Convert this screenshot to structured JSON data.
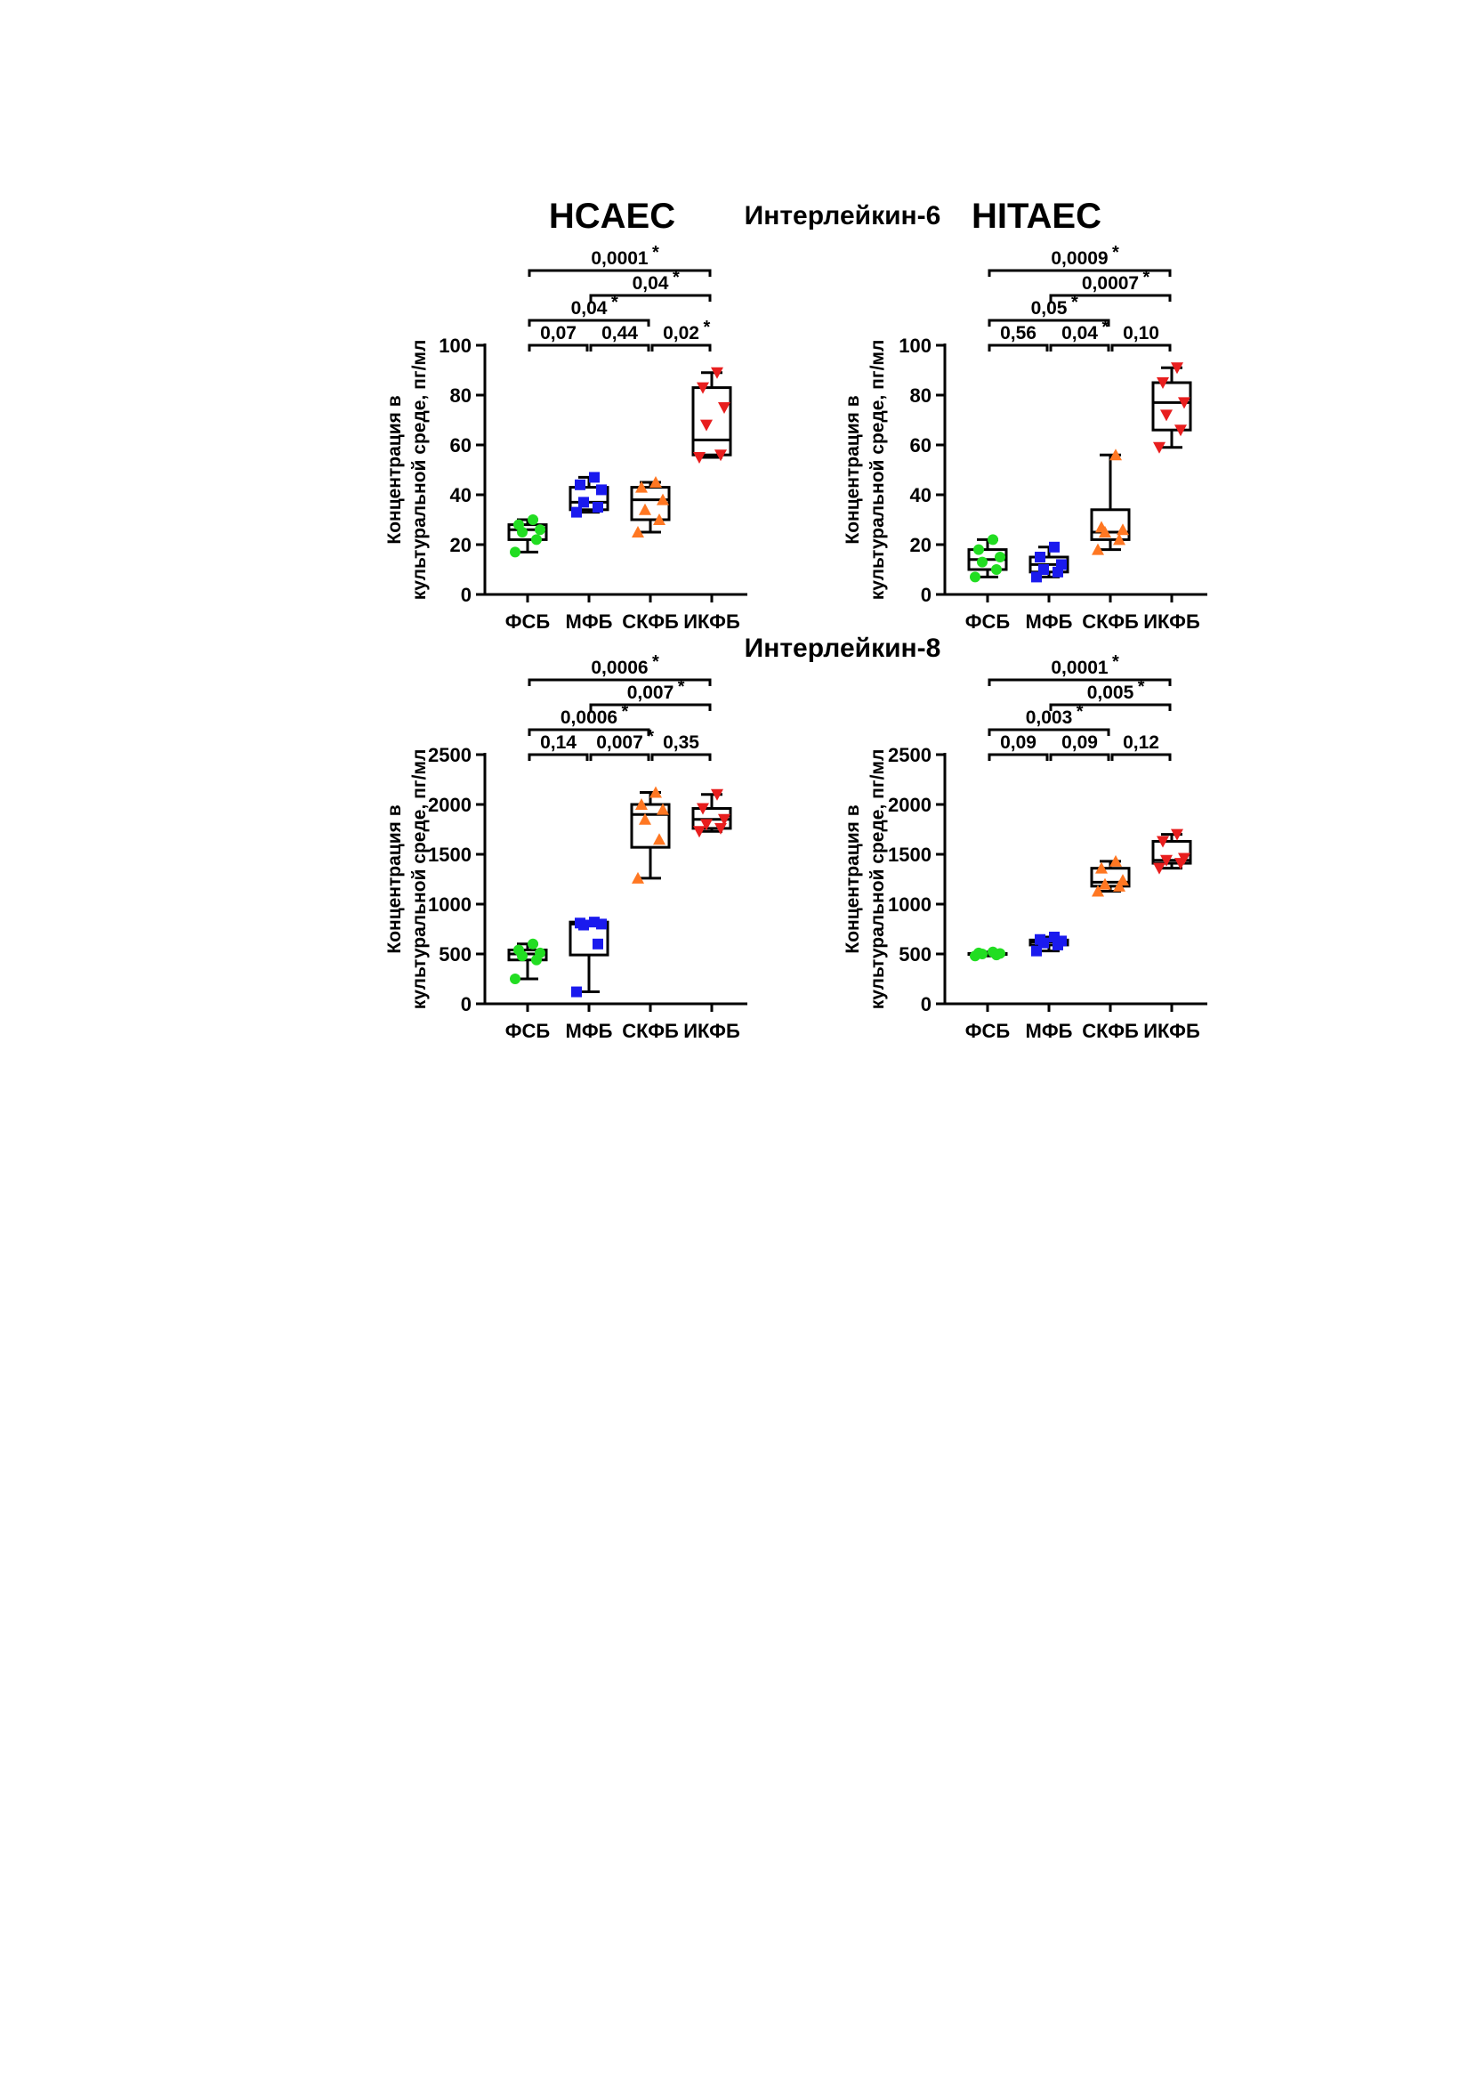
{
  "figure": {
    "cell_left_title": "HCAEC",
    "cell_right_title": "HITAEC",
    "il6_title": "Интерлейкин-6",
    "il8_title": "Интерлейкин-8"
  },
  "chart_data": [
    {
      "type": "box",
      "panel": "IL-6 HCAEC",
      "ylabel": [
        "Концентрация в",
        "культуральной среде, пг/мл"
      ],
      "ylim": [
        0,
        100
      ],
      "yticks": [
        0,
        20,
        40,
        60,
        80,
        100
      ],
      "categories": [
        "ФСБ",
        "МФБ",
        "СКФБ",
        "ИКФБ"
      ],
      "boxes": [
        {
          "category": "ФСБ",
          "min": 17,
          "q1": 22,
          "median": 26,
          "q3": 28,
          "max": 30,
          "color": "#22dd22",
          "marker": "circle",
          "points": [
            17,
            22,
            25,
            26,
            28,
            30
          ]
        },
        {
          "category": "МФБ",
          "min": 33,
          "q1": 34,
          "median": 37,
          "q3": 43,
          "max": 47,
          "color": "#1a1aee",
          "marker": "square",
          "points": [
            33,
            35,
            37,
            42,
            44,
            47
          ]
        },
        {
          "category": "СКФБ",
          "min": 25,
          "q1": 30,
          "median": 38,
          "q3": 43,
          "max": 45,
          "color": "#ff7722",
          "marker": "triangle-up",
          "points": [
            25,
            30,
            34,
            38,
            43,
            45
          ]
        },
        {
          "category": "ИКФБ",
          "min": 55,
          "q1": 56,
          "median": 62,
          "q3": 83,
          "max": 89,
          "color": "#e81e1e",
          "marker": "triangle-down",
          "points": [
            55,
            56,
            68,
            75,
            83,
            89
          ]
        }
      ],
      "comparisons": [
        {
          "from": 0,
          "to": 1,
          "level": 0,
          "label": "0,07",
          "significant": false
        },
        {
          "from": 1,
          "to": 2,
          "level": 0,
          "label": "0,44",
          "significant": false
        },
        {
          "from": 2,
          "to": 3,
          "level": 0,
          "label": "0,02",
          "significant": true
        },
        {
          "from": 0,
          "to": 2,
          "level": 1,
          "label": "0,04",
          "significant": true
        },
        {
          "from": 1,
          "to": 3,
          "level": 2,
          "label": "0,04",
          "significant": true
        },
        {
          "from": 0,
          "to": 3,
          "level": 3,
          "label": "0,0001",
          "significant": true
        }
      ]
    },
    {
      "type": "box",
      "panel": "IL-6 HITAEC",
      "ylabel": [
        "Концентрация в",
        "культуральной среде, пг/мл"
      ],
      "ylim": [
        0,
        100
      ],
      "yticks": [
        0,
        20,
        40,
        60,
        80,
        100
      ],
      "categories": [
        "ФСБ",
        "МФБ",
        "СКФБ",
        "ИКФБ"
      ],
      "boxes": [
        {
          "category": "ФСБ",
          "min": 7,
          "q1": 10,
          "median": 14,
          "q3": 18,
          "max": 22,
          "color": "#22dd22",
          "marker": "circle",
          "points": [
            7,
            10,
            13,
            15,
            18,
            22
          ]
        },
        {
          "category": "МФБ",
          "min": 7,
          "q1": 9,
          "median": 12,
          "q3": 15,
          "max": 19,
          "color": "#1a1aee",
          "marker": "square",
          "points": [
            7,
            9,
            10,
            12,
            15,
            19
          ]
        },
        {
          "category": "СКФБ",
          "min": 18,
          "q1": 22,
          "median": 25,
          "q3": 34,
          "max": 56,
          "color": "#ff7722",
          "marker": "triangle-up",
          "points": [
            18,
            22,
            25,
            26,
            27,
            56
          ]
        },
        {
          "category": "ИКФБ",
          "min": 59,
          "q1": 66,
          "median": 77,
          "q3": 85,
          "max": 91,
          "color": "#e81e1e",
          "marker": "triangle-down",
          "points": [
            59,
            66,
            72,
            77,
            85,
            91
          ]
        }
      ],
      "comparisons": [
        {
          "from": 0,
          "to": 1,
          "level": 0,
          "label": "0,56",
          "significant": false
        },
        {
          "from": 1,
          "to": 2,
          "level": 0,
          "label": "0,04",
          "significant": true
        },
        {
          "from": 2,
          "to": 3,
          "level": 0,
          "label": "0,10",
          "significant": false
        },
        {
          "from": 0,
          "to": 2,
          "level": 1,
          "label": "0,05",
          "significant": true
        },
        {
          "from": 1,
          "to": 3,
          "level": 2,
          "label": "0,0007",
          "significant": true
        },
        {
          "from": 0,
          "to": 3,
          "level": 3,
          "label": "0,0009",
          "significant": true
        }
      ]
    },
    {
      "type": "box",
      "panel": "IL-8 HCAEC",
      "ylabel": [
        "Концентрация в",
        "культуральной среде, пг/мл"
      ],
      "ylim": [
        0,
        2500
      ],
      "yticks": [
        0,
        500,
        1000,
        1500,
        2000,
        2500
      ],
      "categories": [
        "ФСБ",
        "МФБ",
        "СКФБ",
        "ИКФБ"
      ],
      "boxes": [
        {
          "category": "ФСБ",
          "min": 250,
          "q1": 440,
          "median": 500,
          "q3": 540,
          "max": 600,
          "color": "#22dd22",
          "marker": "circle",
          "points": [
            250,
            440,
            480,
            510,
            540,
            600
          ]
        },
        {
          "category": "МФБ",
          "min": 120,
          "q1": 490,
          "median": 800,
          "q3": 820,
          "max": 820,
          "color": "#1a1aee",
          "marker": "square",
          "points": [
            120,
            600,
            790,
            800,
            810,
            820
          ]
        },
        {
          "category": "СКФБ",
          "min": 1260,
          "q1": 1570,
          "median": 1900,
          "q3": 2000,
          "max": 2120,
          "color": "#ff7722",
          "marker": "triangle-up",
          "points": [
            1260,
            1650,
            1850,
            1950,
            2000,
            2120
          ]
        },
        {
          "category": "ИКФБ",
          "min": 1730,
          "q1": 1760,
          "median": 1850,
          "q3": 1960,
          "max": 2100,
          "color": "#e81e1e",
          "marker": "triangle-down",
          "points": [
            1730,
            1760,
            1800,
            1850,
            1960,
            2100
          ]
        }
      ],
      "comparisons": [
        {
          "from": 0,
          "to": 1,
          "level": 0,
          "label": "0,14",
          "significant": false
        },
        {
          "from": 1,
          "to": 2,
          "level": 0,
          "label": "0,007",
          "significant": true
        },
        {
          "from": 2,
          "to": 3,
          "level": 0,
          "label": "0,35",
          "significant": false
        },
        {
          "from": 0,
          "to": 2,
          "level": 1,
          "label": "0,0006",
          "significant": true
        },
        {
          "from": 1,
          "to": 3,
          "level": 2,
          "label": "0,007",
          "significant": true
        },
        {
          "from": 0,
          "to": 3,
          "level": 3,
          "label": "0,0006",
          "significant": true
        }
      ]
    },
    {
      "type": "box",
      "panel": "IL-8 HITAEC",
      "ylabel": [
        "Концентрация в",
        "культуральной среде, пг/мл"
      ],
      "ylim": [
        0,
        2500
      ],
      "yticks": [
        0,
        500,
        1000,
        1500,
        2000,
        2500
      ],
      "categories": [
        "ФСБ",
        "МФБ",
        "СКФБ",
        "ИКФБ"
      ],
      "boxes": [
        {
          "category": "ФСБ",
          "min": 480,
          "q1": 495,
          "median": 500,
          "q3": 505,
          "max": 520,
          "color": "#22dd22",
          "marker": "circle",
          "points": [
            480,
            490,
            500,
            505,
            510,
            520
          ]
        },
        {
          "category": "МФБ",
          "min": 530,
          "q1": 590,
          "median": 620,
          "q3": 640,
          "max": 670,
          "color": "#1a1aee",
          "marker": "square",
          "points": [
            530,
            590,
            610,
            630,
            645,
            670
          ]
        },
        {
          "category": "СКФБ",
          "min": 1130,
          "q1": 1180,
          "median": 1220,
          "q3": 1360,
          "max": 1430,
          "color": "#ff7722",
          "marker": "triangle-up",
          "points": [
            1130,
            1180,
            1200,
            1240,
            1360,
            1430
          ]
        },
        {
          "category": "ИКФБ",
          "min": 1360,
          "q1": 1410,
          "median": 1440,
          "q3": 1630,
          "max": 1700,
          "color": "#e81e1e",
          "marker": "triangle-down",
          "points": [
            1360,
            1410,
            1440,
            1460,
            1630,
            1700
          ]
        }
      ],
      "comparisons": [
        {
          "from": 0,
          "to": 1,
          "level": 0,
          "label": "0,09",
          "significant": false
        },
        {
          "from": 1,
          "to": 2,
          "level": 0,
          "label": "0,09",
          "significant": false
        },
        {
          "from": 2,
          "to": 3,
          "level": 0,
          "label": "0,12",
          "significant": false
        },
        {
          "from": 0,
          "to": 2,
          "level": 1,
          "label": "0,003",
          "significant": true
        },
        {
          "from": 1,
          "to": 3,
          "level": 2,
          "label": "0,005",
          "significant": true
        },
        {
          "from": 0,
          "to": 3,
          "level": 3,
          "label": "0,0001",
          "significant": true
        }
      ]
    }
  ]
}
